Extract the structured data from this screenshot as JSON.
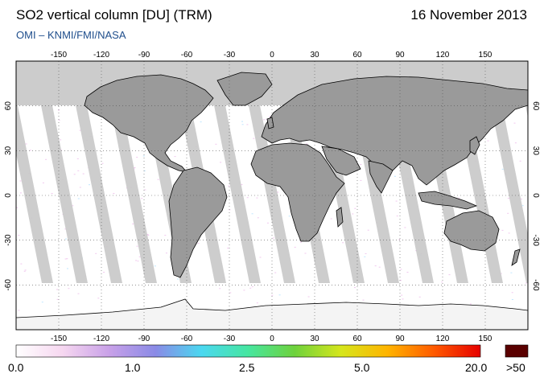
{
  "header": {
    "title": "SO2 vertical column [DU] (TRM)",
    "date": "16 November 2013",
    "credit": "OMI  –  KNMI/FMI/NASA"
  },
  "map": {
    "lon_ticks": [
      "-150",
      "-120",
      "-90",
      "-60",
      "-30",
      "0",
      "30",
      "60",
      "90",
      "120",
      "150"
    ],
    "lat_ticks": [
      "60",
      "30",
      "0",
      "-30",
      "-60"
    ],
    "lon_range": [
      -180,
      180
    ],
    "lat_range": [
      -90,
      90
    ],
    "projection": "equirectangular",
    "grid": "dotted",
    "colors": {
      "no_data": "#cccccc",
      "land": "#9a9a9a",
      "swath_gap": "#c8c8c8",
      "frame": "#000000"
    }
  },
  "colorbar": {
    "labels": [
      "0.0",
      "1.0",
      "2.5",
      "5.0",
      "20.0",
      ">50"
    ],
    "gradient_stops": [
      "#ffffff",
      "#f6d7f0",
      "#c9a1e8",
      "#8a8ae6",
      "#4ad8f0",
      "#46e6a0",
      "#6ed23c",
      "#d6e61c",
      "#ffb400",
      "#ff5a00",
      "#e60000"
    ],
    "overflow_color": "#5a0000"
  }
}
